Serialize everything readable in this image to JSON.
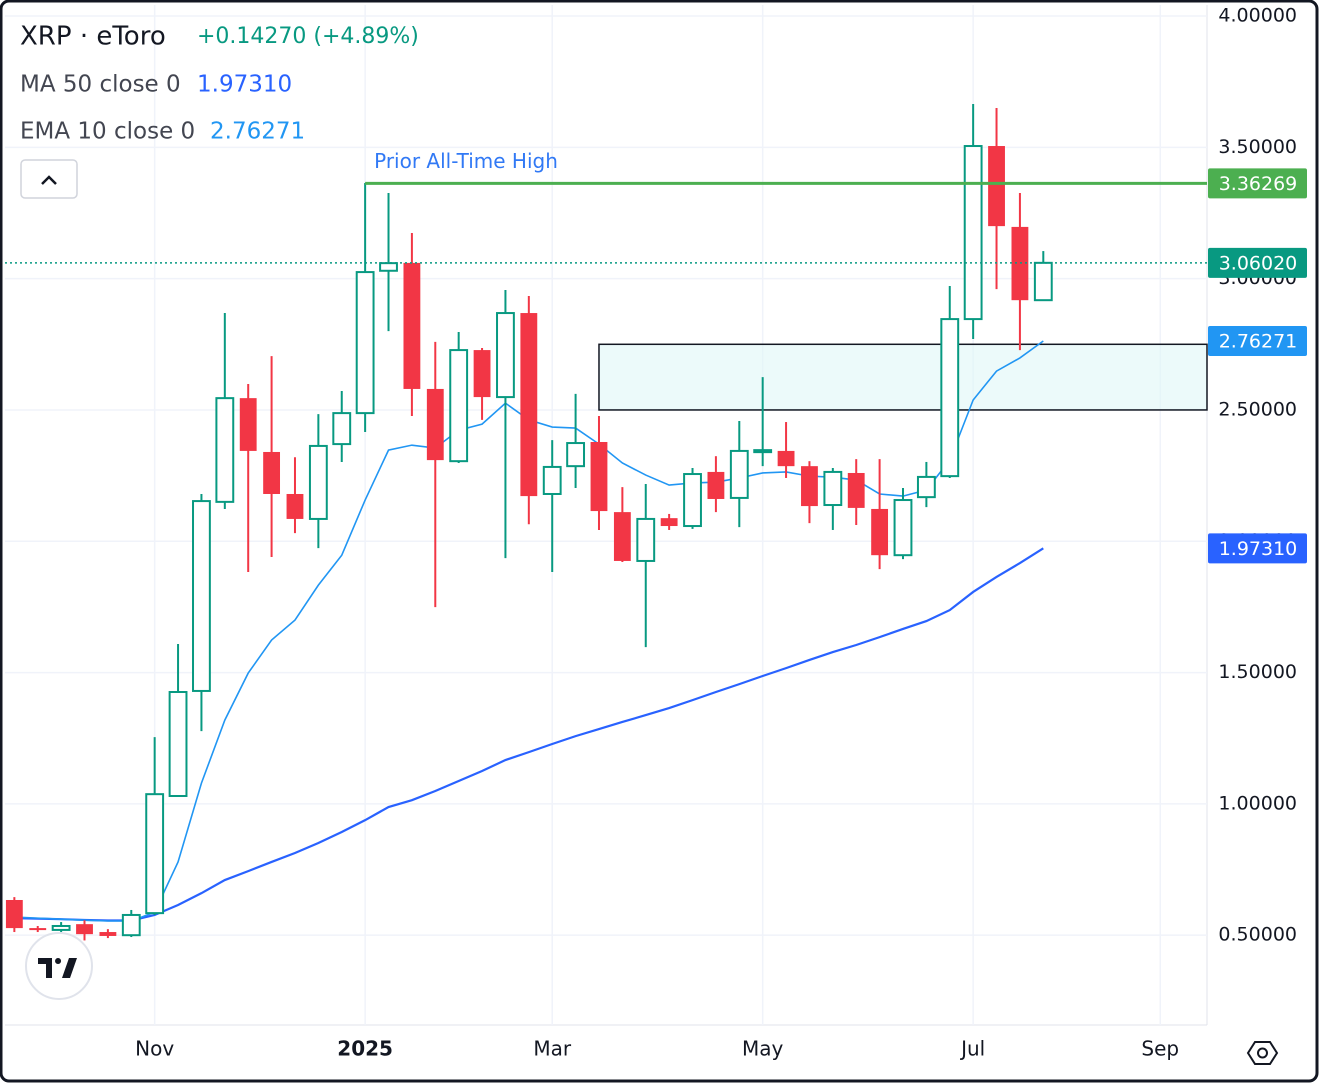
{
  "chart_data": {
    "type": "candlestick",
    "title": "XRP · eToro",
    "change_label": "+0.14270 (+4.89%)",
    "categories": [
      null,
      null,
      null,
      null,
      null,
      null,
      null,
      null,
      null,
      null,
      null,
      null,
      null,
      null,
      null,
      null,
      null,
      null,
      null,
      null,
      null,
      null,
      null,
      null,
      null,
      null,
      null,
      null,
      null,
      null,
      null,
      null,
      null,
      null,
      null,
      null,
      null,
      null,
      null,
      null,
      null,
      null,
      null,
      null,
      null
    ],
    "open": [
      0.634,
      0.527,
      0.52,
      0.542,
      0.512,
      0.5,
      0.584,
      1.03,
      1.43,
      2.15,
      2.545,
      2.34,
      2.18,
      2.085,
      2.37,
      2.488,
      3.03,
      3.06,
      2.58,
      2.305,
      2.728,
      2.549,
      2.869,
      2.18,
      2.286,
      2.378,
      2.111,
      1.925,
      2.088,
      2.058,
      2.264,
      2.165,
      2.344,
      2.344,
      2.286,
      2.138,
      2.26,
      2.123,
      1.947,
      2.168,
      2.248,
      2.846,
      3.505,
      3.197,
      2.918
    ],
    "high": [
      0.645,
      0.535,
      0.55,
      0.557,
      0.523,
      0.596,
      1.254,
      1.609,
      2.18,
      2.869,
      2.599,
      2.705,
      2.32,
      2.484,
      2.572,
      3.364,
      3.326,
      3.174,
      2.759,
      2.797,
      2.736,
      2.957,
      2.934,
      2.385,
      2.561,
      2.477,
      2.206,
      2.218,
      2.104,
      2.279,
      2.324,
      2.458,
      2.625,
      2.454,
      2.305,
      2.279,
      2.313,
      2.313,
      2.203,
      2.302,
      2.972,
      3.665,
      3.65,
      3.326,
      3.105
    ],
    "low": [
      0.512,
      0.512,
      0.512,
      0.48,
      0.489,
      0.493,
      0.577,
      1.03,
      1.277,
      2.123,
      1.883,
      1.94,
      2.031,
      1.974,
      2.302,
      2.416,
      2.8,
      2.477,
      1.749,
      2.298,
      2.462,
      1.936,
      2.065,
      1.883,
      2.203,
      2.043,
      1.921,
      1.597,
      2.043,
      2.047,
      2.111,
      2.054,
      2.286,
      2.241,
      2.069,
      2.043,
      2.062,
      1.894,
      1.932,
      2.13,
      2.241,
      2.77,
      2.96,
      2.728,
      2.915
    ],
    "close": [
      0.527,
      0.52,
      0.535,
      0.504,
      0.497,
      0.577,
      1.037,
      1.426,
      2.153,
      2.545,
      2.344,
      2.18,
      2.085,
      2.363,
      2.488,
      3.025,
      3.059,
      2.58,
      2.309,
      2.728,
      2.549,
      2.869,
      2.172,
      2.283,
      2.374,
      2.115,
      1.925,
      2.085,
      2.058,
      2.256,
      2.161,
      2.344,
      2.347,
      2.286,
      2.134,
      2.264,
      2.127,
      1.947,
      2.157,
      2.245,
      2.846,
      3.505,
      3.2,
      2.918,
      3.0602
    ],
    "up_color": "#089981",
    "down_color": "#f23645",
    "series": [
      {
        "name": "MA 50 close 0",
        "color": "#2962ff",
        "last": {
          "value": 1.9731,
          "label": "1.97310"
        },
        "values": [
          0.565,
          0.563,
          0.561,
          0.558,
          0.556,
          0.556,
          0.577,
          0.615,
          0.66,
          0.71,
          0.744,
          0.779,
          0.813,
          0.851,
          0.893,
          0.938,
          0.988,
          1.014,
          1.049,
          1.087,
          1.125,
          1.167,
          1.197,
          1.228,
          1.258,
          1.285,
          1.312,
          1.338,
          1.365,
          1.395,
          1.426,
          1.456,
          1.487,
          1.517,
          1.548,
          1.578,
          1.605,
          1.635,
          1.666,
          1.696,
          1.738,
          1.807,
          1.864,
          1.917,
          1.9731
        ]
      },
      {
        "name": "EMA 10 close 0",
        "color": "#2196f3",
        "last": {
          "value": 2.76271,
          "label": "2.76271"
        },
        "values": [
          0.569,
          0.565,
          0.561,
          0.557,
          0.554,
          0.554,
          0.588,
          0.779,
          1.079,
          1.319,
          1.498,
          1.624,
          1.7,
          1.833,
          1.947,
          2.157,
          2.347,
          2.366,
          2.355,
          2.423,
          2.446,
          2.526,
          2.462,
          2.435,
          2.431,
          2.37,
          2.298,
          2.252,
          2.214,
          2.222,
          2.225,
          2.241,
          2.26,
          2.264,
          2.248,
          2.244,
          2.233,
          2.18,
          2.172,
          2.195,
          2.309,
          2.538,
          2.648,
          2.698,
          2.76271
        ]
      }
    ],
    "ylim": [
      0.158,
      4.042
    ],
    "yticks": [
      {
        "value": 0.5,
        "label": "0.50000"
      },
      {
        "value": 1,
        "label": "1.00000"
      },
      {
        "value": 1.5,
        "label": "1.50000"
      },
      {
        "value": 2,
        "label": "2.00000"
      },
      {
        "value": 2.5,
        "label": "2.50000"
      },
      {
        "value": 3,
        "label": "3.00000"
      },
      {
        "value": 3.5,
        "label": "3.50000"
      },
      {
        "value": 4,
        "label": "4.00000"
      }
    ],
    "xlim": [
      -0.4,
      51
    ],
    "xticks": [
      {
        "value": 6,
        "label": "Nov"
      },
      {
        "value": 15,
        "label": "2025"
      },
      {
        "value": 23,
        "label": "Mar"
      },
      {
        "value": 32,
        "label": "May"
      },
      {
        "value": 41,
        "label": "Jul"
      },
      {
        "value": 49,
        "label": "Sep"
      }
    ],
    "grid": true,
    "price_line": {
      "value": 3.0602,
      "label": "3.06020",
      "color": "#089981"
    },
    "reference_line": {
      "text": "Prior All-Time High",
      "value": 3.36269,
      "label": "3.36269",
      "start": 15,
      "color": "#4caf50"
    },
    "zone": {
      "start": 25,
      "range": [
        2.5,
        2.75
      ]
    }
  }
}
